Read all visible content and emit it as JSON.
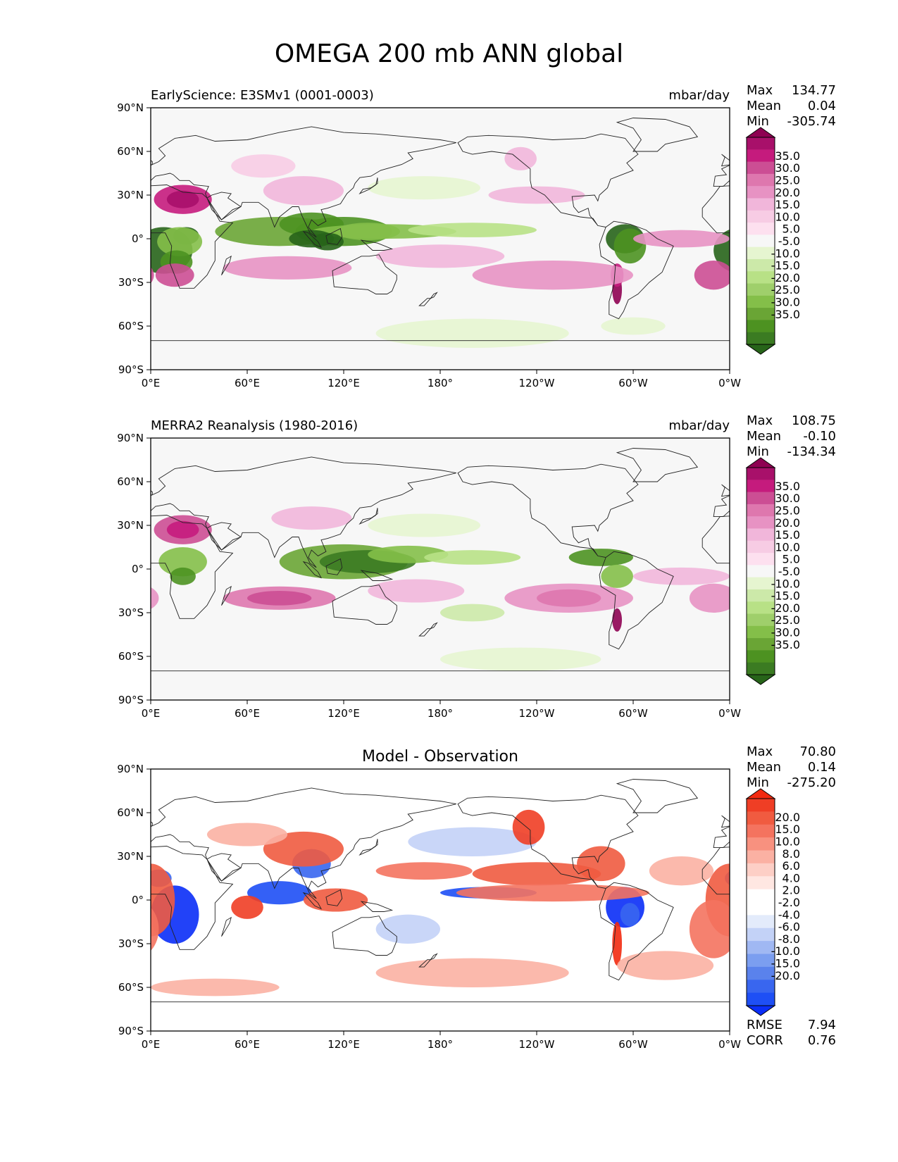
{
  "figure": {
    "title": "OMEGA 200 mb ANN global"
  },
  "palettes": {
    "prgn": [
      "#276419",
      "#3b7b22",
      "#4d9221",
      "#6aa535",
      "#84bf49",
      "#9fcf6b",
      "#b8e186",
      "#cce9a9",
      "#e6f5d0",
      "#f7f7f7",
      "#fde0ef",
      "#f7cce4",
      "#f1b6da",
      "#e792c3",
      "#de77ae",
      "#cc4e94",
      "#c51b7d",
      "#a8106a",
      "#8e0152"
    ],
    "bwr": [
      "#0a2ef7",
      "#1e4ff5",
      "#3966ef",
      "#5a82ec",
      "#7b9ef0",
      "#a0b8f3",
      "#c3d2f7",
      "#e3ebfb",
      "#ffffff",
      "#ffffff",
      "#ffe7e2",
      "#fdcfc6",
      "#fbb1a3",
      "#f8917f",
      "#f4735f",
      "#f05b40",
      "#ef3e25",
      "#f22a10"
    ]
  },
  "chart_data": [
    {
      "type": "heatmap",
      "panel": "test",
      "title": "EarlyScience: E3SMv1 (0001-0003)",
      "units": "mbar/day",
      "stats": {
        "max_label": "Max",
        "max": "134.77",
        "mean_label": "Mean",
        "mean": "0.04",
        "min_label": "Min",
        "min": "-305.74"
      },
      "colorbar_levels": [
        "35.0",
        "30.0",
        "25.0",
        "20.0",
        "15.0",
        "10.0",
        "5.0",
        "-5.0",
        "-10.0",
        "-15.0",
        "-20.0",
        "-25.0",
        "-30.0",
        "-35.0"
      ],
      "palette": "prgn",
      "x_ticks": [
        "0°E",
        "60°E",
        "120°E",
        "180°",
        "120°W",
        "60°W",
        "0°W"
      ],
      "y_ticks": [
        "90°N",
        "60°N",
        "30°N",
        "0°",
        "30°S",
        "60°S",
        "90°S"
      ],
      "xlim": [
        0,
        360
      ],
      "ylim": [
        -90,
        90
      ]
    },
    {
      "type": "heatmap",
      "panel": "reference",
      "title": "MERRA2 Reanalysis (1980-2016)",
      "units": "mbar/day",
      "stats": {
        "max_label": "Max",
        "max": "108.75",
        "mean_label": "Mean",
        "mean": "-0.10",
        "min_label": "Min",
        "min": "-134.34"
      },
      "colorbar_levels": [
        "35.0",
        "30.0",
        "25.0",
        "20.0",
        "15.0",
        "10.0",
        "5.0",
        "-5.0",
        "-10.0",
        "-15.0",
        "-20.0",
        "-25.0",
        "-30.0",
        "-35.0"
      ],
      "palette": "prgn",
      "x_ticks": [
        "0°E",
        "60°E",
        "120°E",
        "180°",
        "120°W",
        "60°W",
        "0°W"
      ],
      "y_ticks": [
        "90°N",
        "60°N",
        "30°N",
        "0°",
        "30°S",
        "60°S",
        "90°S"
      ],
      "xlim": [
        0,
        360
      ],
      "ylim": [
        -90,
        90
      ]
    },
    {
      "type": "heatmap",
      "panel": "difference",
      "title": "Model - Observation",
      "units": "",
      "stats": {
        "max_label": "Max",
        "max": "70.80",
        "mean_label": "Mean",
        "mean": "0.14",
        "min_label": "Min",
        "min": "-275.20"
      },
      "colorbar_levels": [
        "20.0",
        "15.0",
        "10.0",
        "8.0",
        "6.0",
        "4.0",
        "2.0",
        "-2.0",
        "-4.0",
        "-6.0",
        "-8.0",
        "-10.0",
        "-15.0",
        "-20.0"
      ],
      "palette": "bwr",
      "x_ticks": [
        "0°E",
        "60°E",
        "120°E",
        "180°",
        "120°W",
        "60°W",
        "0°W"
      ],
      "y_ticks": [
        "90°N",
        "60°N",
        "30°N",
        "0°",
        "30°S",
        "60°S",
        "90°S"
      ],
      "xlim": [
        0,
        360
      ],
      "ylim": [
        -90,
        90
      ],
      "metrics": {
        "rmse_label": "RMSE",
        "rmse": "7.94",
        "corr_label": "CORR",
        "corr": "0.76"
      }
    }
  ]
}
